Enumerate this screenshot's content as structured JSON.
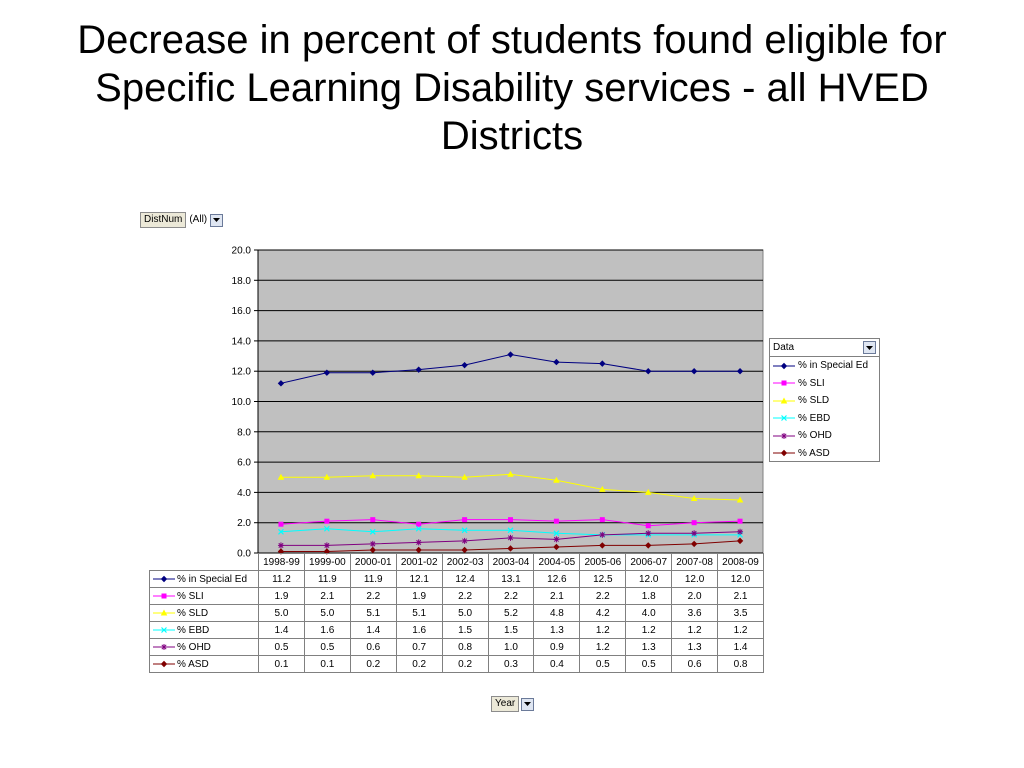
{
  "title": "Decrease in percent of students found eligible for Specific Learning Disability services - all HVED Districts",
  "page_filter": {
    "label": "DistNum",
    "value": "(All)"
  },
  "category_field": {
    "label": "Year"
  },
  "legend": {
    "title": "Data"
  },
  "icons": {
    "dropdown": "dropdown-arrow-icon"
  },
  "colors": {
    "plot_bg": "#c0c0c0",
    "gridline": "#000000"
  },
  "chart_data": {
    "type": "line",
    "categories": [
      "1998-99",
      "1999-00",
      "2000-01",
      "2001-02",
      "2002-03",
      "2003-04",
      "2004-05",
      "2005-06",
      "2006-07",
      "2007-08",
      "2008-09"
    ],
    "ylim": [
      0,
      20
    ],
    "yticks": [
      "0.0",
      "2.0",
      "4.0",
      "6.0",
      "8.0",
      "10.0",
      "12.0",
      "14.0",
      "16.0",
      "18.0",
      "20.0"
    ],
    "grid": true,
    "legend_position": "right",
    "series": [
      {
        "name": "% in Special Ed",
        "color": "#000080",
        "marker": "diamond",
        "values": [
          11.2,
          11.9,
          11.9,
          12.1,
          12.4,
          13.1,
          12.6,
          12.5,
          12.0,
          12.0,
          12.0
        ]
      },
      {
        "name": "% SLI",
        "color": "#ff00ff",
        "marker": "square",
        "values": [
          1.9,
          2.1,
          2.2,
          1.9,
          2.2,
          2.2,
          2.1,
          2.2,
          1.8,
          2.0,
          2.1
        ]
      },
      {
        "name": "% SLD",
        "color": "#ffff00",
        "marker": "triangle",
        "values": [
          5.0,
          5.0,
          5.1,
          5.1,
          5.0,
          5.2,
          4.8,
          4.2,
          4.0,
          3.6,
          3.5
        ]
      },
      {
        "name": "% EBD",
        "color": "#00ffff",
        "marker": "x",
        "values": [
          1.4,
          1.6,
          1.4,
          1.6,
          1.5,
          1.5,
          1.3,
          1.2,
          1.2,
          1.2,
          1.2
        ]
      },
      {
        "name": "% OHD",
        "color": "#800080",
        "marker": "star",
        "values": [
          0.5,
          0.5,
          0.6,
          0.7,
          0.8,
          1.0,
          0.9,
          1.2,
          1.3,
          1.3,
          1.4
        ]
      },
      {
        "name": "% ASD",
        "color": "#800000",
        "marker": "diamond",
        "values": [
          0.1,
          0.1,
          0.2,
          0.2,
          0.2,
          0.3,
          0.4,
          0.5,
          0.5,
          0.6,
          0.8
        ]
      }
    ]
  }
}
